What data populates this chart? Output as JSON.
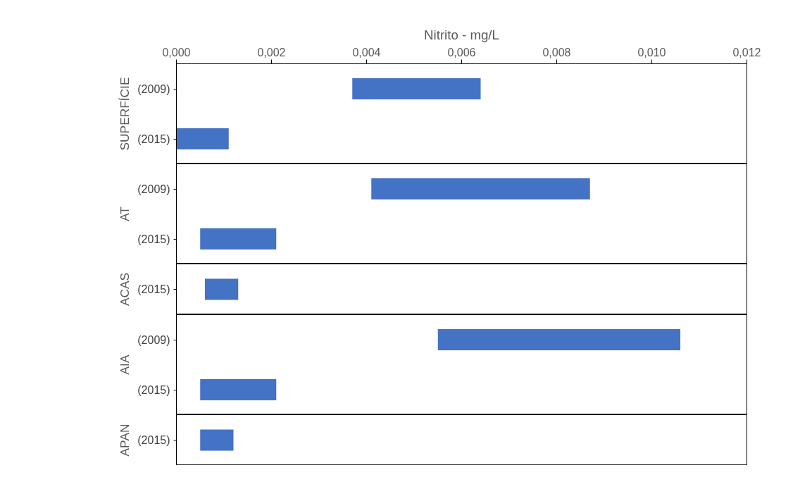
{
  "chart_data": [
    {
      "type": "bar",
      "orientation": "horizontal",
      "xlabel": "Nitrito - mg/L",
      "ylabel": "SUPERFÍCIE",
      "categories": [
        "(2009)",
        "(2015)"
      ],
      "base": [
        0.0037,
        0.0
      ],
      "values": [
        0.0027,
        0.0011
      ],
      "color": "#4472c4",
      "xlim": [
        0,
        0.012
      ],
      "xticks": [
        {
          "value": 0,
          "label": "0,000"
        },
        {
          "value": 0.002,
          "label": "0,002"
        },
        {
          "value": 0.004,
          "label": "0,004"
        },
        {
          "value": 0.006,
          "label": "0,006"
        },
        {
          "value": 0.008,
          "label": "0,008"
        },
        {
          "value": 0.01,
          "label": "0,010"
        },
        {
          "value": 0.012,
          "label": "0,012"
        }
      ],
      "grid": false
    },
    {
      "type": "bar",
      "orientation": "horizontal",
      "ylabel": "AT",
      "categories": [
        "(2009)",
        "(2015)"
      ],
      "base": [
        0.0041,
        0.0005
      ],
      "values": [
        0.0046,
        0.0016
      ],
      "color": "#4472c4",
      "xlim": [
        0,
        0.012
      ],
      "tick_labels": "y",
      "grid": false
    },
    {
      "type": "bar",
      "orientation": "horizontal",
      "ylabel": "ACAS",
      "categories": [
        "(2015)"
      ],
      "base": [
        0.0006
      ],
      "values": [
        0.0007
      ],
      "color": "#4472c4",
      "xlim": [
        0,
        0.012
      ],
      "tick_labels": "y",
      "grid": false
    },
    {
      "type": "bar",
      "orientation": "horizontal",
      "ylabel": "AIA",
      "categories": [
        "(2009)",
        "(2015)"
      ],
      "base": [
        0.0055,
        0.0005
      ],
      "values": [
        0.0051,
        0.0016
      ],
      "color": "#4472c4",
      "xlim": [
        0,
        0.012
      ],
      "tick_labels": "y",
      "grid": false
    },
    {
      "type": "bar",
      "orientation": "horizontal",
      "ylabel": "APAN",
      "categories": [
        "(2015)"
      ],
      "base": [
        0.0005
      ],
      "values": [
        0.0007
      ],
      "color": "#4472c4",
      "xlim": [
        0,
        0.012
      ],
      "tick_labels": "y",
      "grid": false
    }
  ]
}
